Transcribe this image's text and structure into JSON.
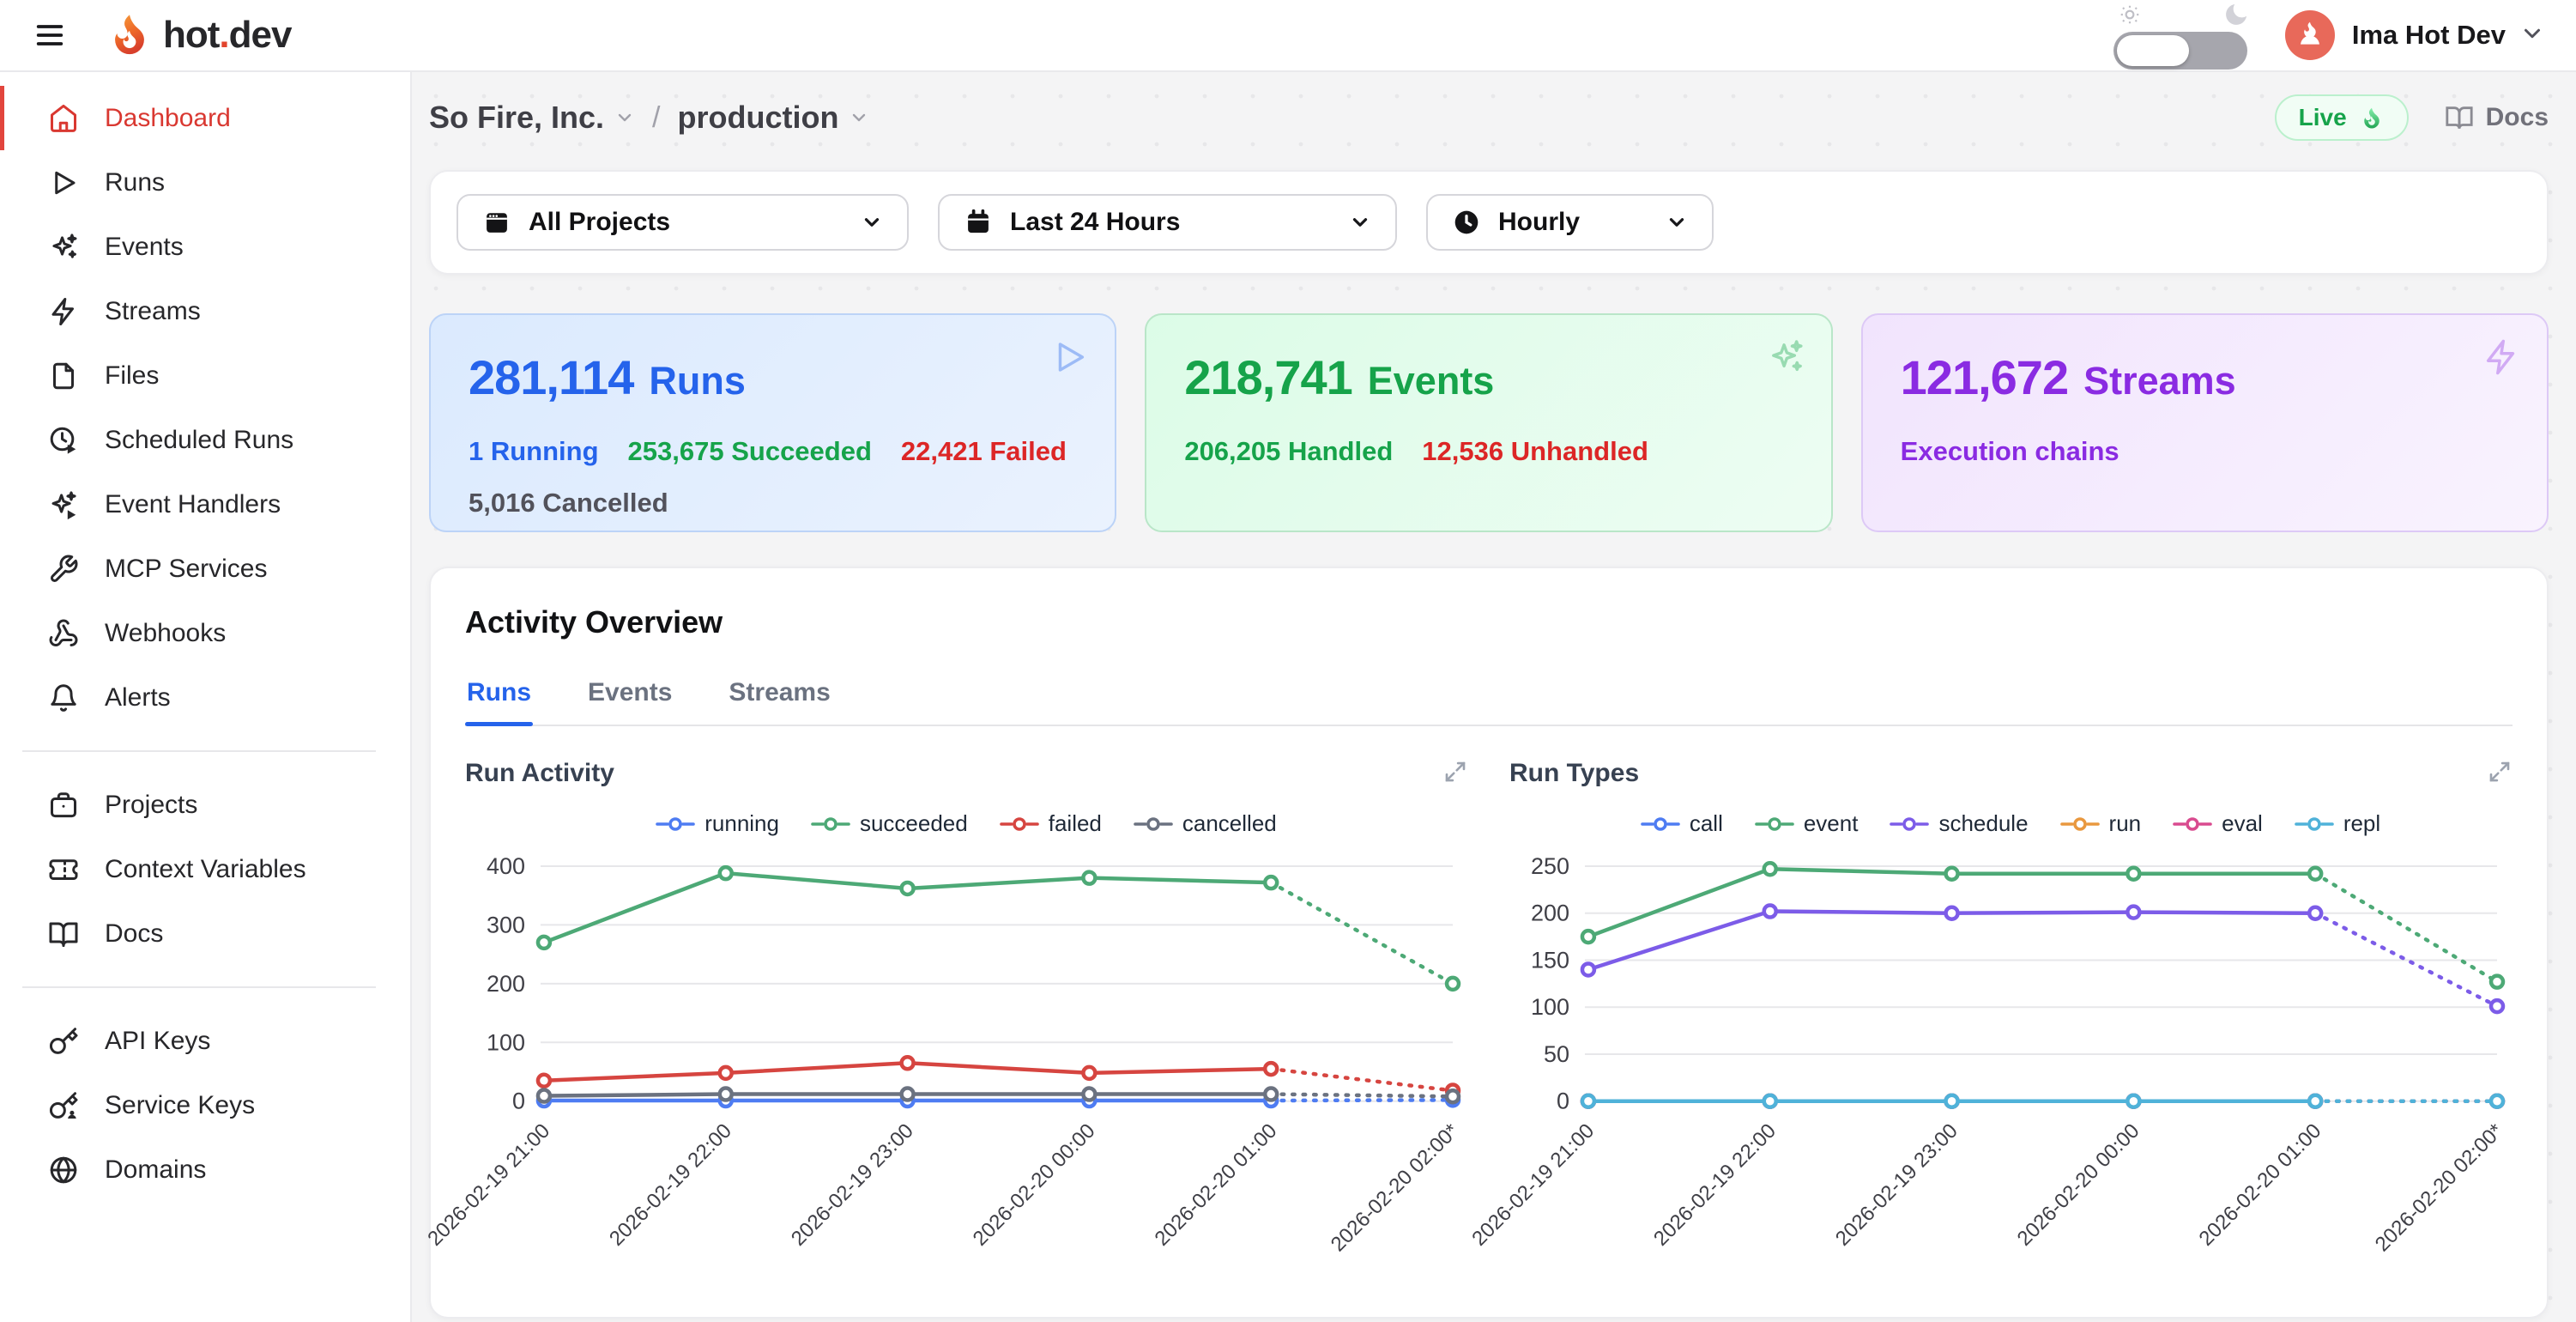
{
  "topbar": {
    "brand_pre": "hot",
    "brand_dot": ".",
    "brand_post": "dev",
    "user_name": "Ima Hot Dev"
  },
  "sidebar": {
    "groups": [
      {
        "items": [
          {
            "label": "Dashboard",
            "icon": "home",
            "active": true
          },
          {
            "label": "Runs",
            "icon": "play"
          },
          {
            "label": "Events",
            "icon": "sparkles"
          },
          {
            "label": "Streams",
            "icon": "zap"
          },
          {
            "label": "Files",
            "icon": "file"
          },
          {
            "label": "Scheduled Runs",
            "icon": "clock-play"
          },
          {
            "label": "Event Handlers",
            "icon": "sparkles-play"
          },
          {
            "label": "MCP Services",
            "icon": "wrench"
          },
          {
            "label": "Webhooks",
            "icon": "webhook"
          },
          {
            "label": "Alerts",
            "icon": "bell"
          }
        ]
      },
      {
        "items": [
          {
            "label": "Projects",
            "icon": "briefcase"
          },
          {
            "label": "Context Variables",
            "icon": "ticket"
          },
          {
            "label": "Docs",
            "icon": "book-open"
          }
        ]
      },
      {
        "items": [
          {
            "label": "API Keys",
            "icon": "key"
          },
          {
            "label": "Service Keys",
            "icon": "key-user"
          },
          {
            "label": "Domains",
            "icon": "globe"
          }
        ]
      }
    ]
  },
  "breadcrumb": {
    "org": "So Fire, Inc.",
    "separator": "/",
    "env": "production"
  },
  "header_actions": {
    "live_label": "Live",
    "docs_label": "Docs"
  },
  "filters": [
    {
      "label": "All Projects",
      "icon": "window-cal",
      "name": "projects-filter"
    },
    {
      "label": "Last 24 Hours",
      "icon": "calendar",
      "name": "time-range-filter"
    },
    {
      "label": "Hourly",
      "icon": "clock-filled",
      "name": "granularity-filter"
    }
  ],
  "stat_cards": [
    {
      "value": "281,114",
      "label": "Runs",
      "accent": "#2563eb",
      "corner_icon": "play",
      "bg1": "#dbeafe",
      "bg2": "#eaf2fe",
      "border": "#bcd3f7",
      "icon_color": "rgba(37,99,235,0.38)",
      "stats": [
        {
          "text": "1 Running",
          "color": "#2563eb"
        },
        {
          "text": "253,675 Succeeded",
          "color": "#16a34a"
        },
        {
          "text": "22,421 Failed",
          "color": "#dc2626"
        },
        {
          "text": "5,016 Cancelled",
          "color": "#52525b",
          "break": true
        }
      ]
    },
    {
      "value": "218,741",
      "label": "Events",
      "accent": "#16a34a",
      "corner_icon": "sparkles",
      "bg1": "#dcfce7",
      "bg2": "#edfdf3",
      "border": "#b9e6c8",
      "icon_color": "rgba(22,163,74,0.38)",
      "stats": [
        {
          "text": "206,205 Handled",
          "color": "#16a34a"
        },
        {
          "text": "12,536 Unhandled",
          "color": "#dc2626"
        }
      ]
    },
    {
      "value": "121,672",
      "label": "Streams",
      "accent": "#8a2be2",
      "corner_icon": "zap",
      "bg1": "#f1e4fd",
      "bg2": "#f9f3fe",
      "border": "#ddc9f6",
      "icon_color": "rgba(138,43,226,0.35)",
      "stats": [
        {
          "text": "Execution chains",
          "color": "#8a2be2"
        }
      ]
    }
  ],
  "activity": {
    "title": "Activity Overview",
    "tabs": [
      {
        "label": "Runs",
        "active": true
      },
      {
        "label": "Events",
        "active": false
      },
      {
        "label": "Streams",
        "active": false
      }
    ]
  },
  "chart_data": [
    {
      "type": "line",
      "title": "Run Activity",
      "x": [
        "2026-02-19 21:00",
        "2026-02-19 22:00",
        "2026-02-19 23:00",
        "2026-02-20 00:00",
        "2026-02-20 01:00",
        "2026-02-20 02:00*"
      ],
      "ylim": [
        0,
        400
      ],
      "yticks": [
        0,
        100,
        200,
        300,
        400
      ],
      "grid": true,
      "legend_position": "top",
      "last_segment_projected_dotted": true,
      "series": [
        {
          "name": "running",
          "color": "#4e7cf2",
          "values": [
            1,
            1,
            1,
            1,
            1,
            2
          ]
        },
        {
          "name": "succeeded",
          "color": "#4da976",
          "values": [
            270,
            388,
            362,
            380,
            372,
            200
          ]
        },
        {
          "name": "failed",
          "color": "#d64540",
          "values": [
            35,
            48,
            65,
            48,
            55,
            18
          ]
        },
        {
          "name": "cancelled",
          "color": "#6b7280",
          "values": [
            9,
            12,
            12,
            12,
            12,
            8
          ]
        }
      ]
    },
    {
      "type": "line",
      "title": "Run Types",
      "x": [
        "2026-02-19 21:00",
        "2026-02-19 22:00",
        "2026-02-19 23:00",
        "2026-02-20 00:00",
        "2026-02-20 01:00",
        "2026-02-20 02:00*"
      ],
      "ylim": [
        0,
        250
      ],
      "yticks": [
        0,
        50,
        100,
        150,
        200,
        250
      ],
      "grid": true,
      "legend_position": "top",
      "last_segment_projected_dotted": true,
      "series": [
        {
          "name": "call",
          "color": "#4e7cf2",
          "values": [
            0,
            0,
            0,
            0,
            0,
            0
          ]
        },
        {
          "name": "event",
          "color": "#4da976",
          "values": [
            175,
            247,
            242,
            242,
            242,
            127
          ]
        },
        {
          "name": "schedule",
          "color": "#7c5ce8",
          "values": [
            140,
            202,
            200,
            201,
            200,
            101
          ]
        },
        {
          "name": "run",
          "color": "#e9983f",
          "values": [
            0,
            0,
            0,
            0,
            0,
            0
          ]
        },
        {
          "name": "eval",
          "color": "#d94b8f",
          "values": [
            0,
            0,
            0,
            0,
            0,
            0
          ]
        },
        {
          "name": "repl",
          "color": "#4fb2d9",
          "values": [
            0,
            0,
            0,
            0,
            0,
            0
          ]
        }
      ]
    }
  ]
}
